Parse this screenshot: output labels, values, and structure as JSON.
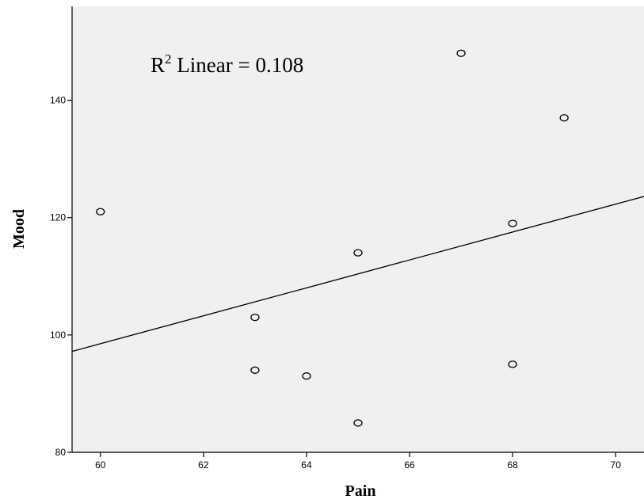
{
  "chart_data": {
    "type": "scatter",
    "xlabel": "Pain",
    "ylabel": "Mood",
    "xlim": [
      59.45,
      70.55
    ],
    "ylim": [
      80,
      156
    ],
    "x_ticks": [
      60,
      62,
      64,
      66,
      68,
      70
    ],
    "y_ticks": [
      80,
      100,
      120,
      140
    ],
    "grid": false,
    "background_color": "#f0f0f0",
    "points": [
      {
        "x": 60,
        "y": 121
      },
      {
        "x": 63,
        "y": 103
      },
      {
        "x": 63,
        "y": 94
      },
      {
        "x": 64,
        "y": 93
      },
      {
        "x": 65,
        "y": 114
      },
      {
        "x": 65,
        "y": 85
      },
      {
        "x": 67,
        "y": 148
      },
      {
        "x": 68,
        "y": 119
      },
      {
        "x": 68,
        "y": 95
      },
      {
        "x": 69,
        "y": 137
      }
    ],
    "fit_line": {
      "type": "linear",
      "x": [
        59.45,
        70.55
      ],
      "y": [
        97.2,
        123.6
      ]
    },
    "annotation": {
      "prefix": "R",
      "superscript": "2",
      "text": " Linear = 0.108"
    }
  }
}
